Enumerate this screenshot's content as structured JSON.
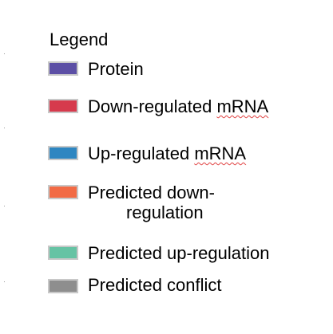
{
  "legend": {
    "title": "Legend",
    "items": [
      {
        "label": "Protein",
        "color": "#5c4fa5"
      },
      {
        "label_prefix": "Down-regulated ",
        "label_marked": "mRNA",
        "color": "#d63a4d"
      },
      {
        "label_prefix": "Up-regulated ",
        "label_marked": "mRNA",
        "color": "#2e86c1"
      },
      {
        "label_line1": "Predicted down-",
        "label_line2": "regulation",
        "color": "#f26b45"
      },
      {
        "label": "Predicted up-regulation",
        "color": "#66c3a4"
      },
      {
        "label": "Predicted conflict",
        "color": "#8e8e8e"
      }
    ]
  }
}
